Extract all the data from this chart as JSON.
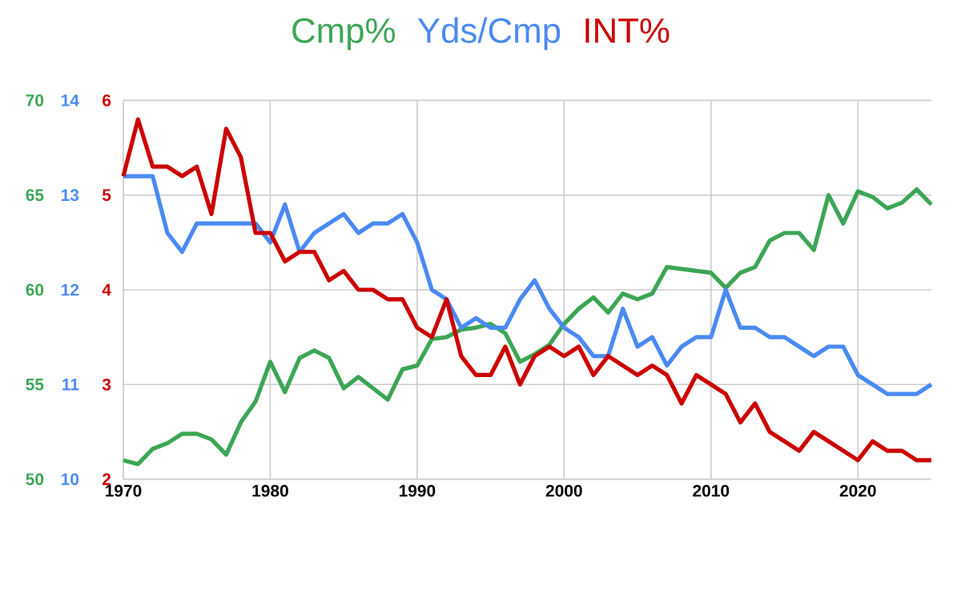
{
  "chart_data": {
    "type": "line",
    "x": [
      1970,
      1971,
      1972,
      1973,
      1974,
      1975,
      1976,
      1977,
      1978,
      1979,
      1980,
      1981,
      1982,
      1983,
      1984,
      1985,
      1986,
      1987,
      1988,
      1989,
      1990,
      1991,
      1992,
      1993,
      1994,
      1995,
      1996,
      1997,
      1998,
      1999,
      2000,
      2001,
      2002,
      2003,
      2004,
      2005,
      2006,
      2007,
      2008,
      2009,
      2010,
      2011,
      2012,
      2013,
      2014,
      2015,
      2016,
      2017,
      2018,
      2019,
      2020,
      2021,
      2022,
      2023,
      2024,
      2025
    ],
    "series": [
      {
        "name": "Cmp%",
        "color": "#3ca655",
        "axis": "y",
        "values": [
          51.0,
          50.8,
          51.6,
          51.9,
          52.4,
          52.4,
          52.1,
          51.3,
          53.0,
          54.1,
          56.2,
          54.6,
          56.4,
          56.8,
          56.4,
          54.8,
          55.4,
          54.8,
          54.2,
          55.8,
          56.0,
          57.4,
          57.5,
          57.9,
          58.0,
          58.2,
          57.7,
          56.2,
          56.6,
          57.1,
          58.2,
          59.0,
          59.6,
          58.8,
          59.8,
          59.5,
          59.8,
          61.2,
          61.1,
          61.0,
          60.9,
          60.1,
          60.9,
          61.2,
          62.6,
          63.0,
          63.0,
          62.1,
          65.0,
          63.5,
          65.2,
          64.9,
          64.3,
          64.6,
          65.3,
          64.5
        ]
      },
      {
        "name": "Yds/Cmp",
        "color": "#4a8af4",
        "axis": "y2",
        "values": [
          13.2,
          13.2,
          13.2,
          12.6,
          12.4,
          12.7,
          12.7,
          12.7,
          12.7,
          12.7,
          12.5,
          12.9,
          12.4,
          12.6,
          12.7,
          12.8,
          12.6,
          12.7,
          12.7,
          12.8,
          12.5,
          12.0,
          11.9,
          11.6,
          11.7,
          11.6,
          11.6,
          11.9,
          12.1,
          11.8,
          11.6,
          11.5,
          11.3,
          11.3,
          11.8,
          11.4,
          11.5,
          11.2,
          11.4,
          11.5,
          11.5,
          12.0,
          11.6,
          11.6,
          11.5,
          11.5,
          11.4,
          11.3,
          11.4,
          11.4,
          11.1,
          11.0,
          10.9,
          10.9,
          10.9,
          11.0
        ]
      },
      {
        "name": "INT%",
        "color": "#cc0000",
        "axis": "y3",
        "values": [
          5.2,
          5.8,
          5.3,
          5.3,
          5.2,
          5.3,
          4.8,
          5.7,
          5.4,
          4.6,
          4.6,
          4.3,
          4.4,
          4.4,
          4.1,
          4.2,
          4.0,
          4.0,
          3.9,
          3.9,
          3.6,
          3.5,
          3.9,
          3.3,
          3.1,
          3.1,
          3.4,
          3.0,
          3.3,
          3.4,
          3.3,
          3.4,
          3.1,
          3.3,
          3.2,
          3.1,
          3.2,
          3.1,
          2.8,
          3.1,
          3.0,
          2.9,
          2.6,
          2.8,
          2.5,
          2.4,
          2.3,
          2.5,
          2.4,
          2.3,
          2.2,
          2.4,
          2.3,
          2.3,
          2.2,
          2.2
        ]
      }
    ],
    "xlim": [
      1970,
      2025
    ],
    "xticks": [
      1970,
      1980,
      1990,
      2000,
      2010,
      2020
    ],
    "ylim": [
      50,
      70
    ],
    "yticks": [
      50,
      55,
      60,
      65,
      70
    ],
    "y2lim": [
      10,
      14
    ],
    "y2ticks": [
      10,
      11,
      12,
      13,
      14
    ],
    "y3lim": [
      2,
      6
    ],
    "y3ticks": [
      2,
      3,
      4,
      5,
      6
    ],
    "grid": true,
    "legend": "top",
    "marker": "none",
    "line_style": "solid"
  }
}
